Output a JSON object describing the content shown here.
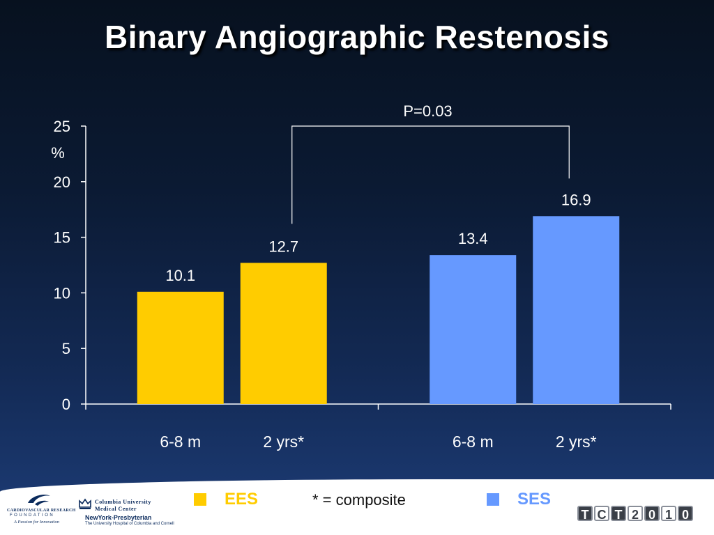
{
  "slide": {
    "title": "Binary Angiographic Restenosis"
  },
  "chart_data": {
    "type": "bar",
    "ylabel": "%",
    "ylim": [
      0,
      25
    ],
    "yticks": [
      "0",
      "5",
      "10",
      "15",
      "20",
      "25"
    ],
    "grid": false,
    "groups": [
      {
        "name": "EES",
        "color": "#FFCC00",
        "categories": [
          "6-8 m",
          "2 yrs*"
        ],
        "values": [
          10.1,
          12.7
        ]
      },
      {
        "name": "SES",
        "color": "#6699FF",
        "categories": [
          "6-8 m",
          "2 yrs*"
        ],
        "values": [
          13.4,
          16.9
        ]
      }
    ],
    "annotation": {
      "text": "P=0.03",
      "between": [
        "EES 2 yrs*",
        "SES 2 yrs*"
      ]
    }
  },
  "legend": {
    "ees_label": "EES",
    "ees_color": "#FFCC00",
    "ses_label": "SES",
    "ses_color": "#6699FF",
    "note": "* = composite"
  },
  "logos": {
    "crf_line1": "CARDIOVASCULAR RESEARCH",
    "crf_line2": "FOUNDATION",
    "crf_tagline": "A Passion for Innovation",
    "cu_line1": "Columbia University",
    "cu_line2": "Medical Center",
    "nyp_line1": "NewYork-Presbyterian",
    "nyp_line2": "The University Hospital of Columbia and Cornell",
    "tct_letters": [
      "T",
      "C",
      "T",
      "2",
      "0",
      "1",
      "0"
    ]
  }
}
